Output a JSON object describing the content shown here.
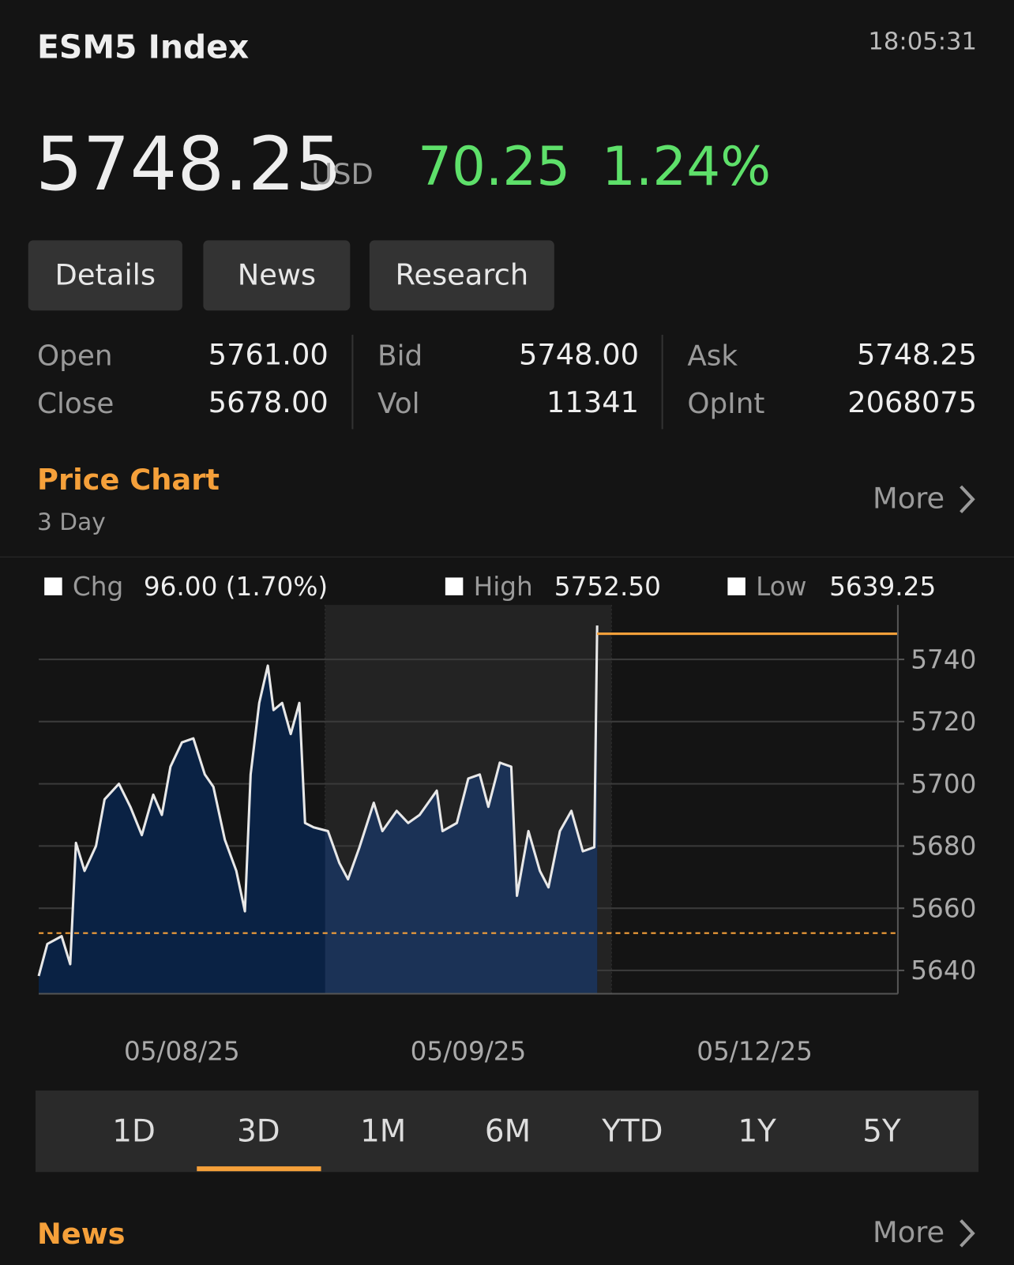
{
  "header": {
    "title": "ESM5 Index",
    "time": "18:05:31",
    "price": "5748.25",
    "currency": "USD",
    "change": "70.25",
    "change_pct": "1.24%"
  },
  "tabs": [
    "Details",
    "News",
    "Research"
  ],
  "stats": [
    {
      "label": "Open",
      "value": "5761.00"
    },
    {
      "label": "Close",
      "value": "5678.00"
    },
    {
      "label": "Bid",
      "value": "5748.00"
    },
    {
      "label": "Vol",
      "value": "11341"
    },
    {
      "label": "Ask",
      "value": "5748.25"
    },
    {
      "label": "OpInt",
      "value": "2068075"
    }
  ],
  "price_chart": {
    "title": "Price Chart",
    "subtitle": "3 Day",
    "more": "More"
  },
  "chart_data": {
    "type": "line",
    "legend": [
      {
        "label": "Chg",
        "value": "96.00 (1.70%)"
      },
      {
        "label": "High",
        "value": "5752.50"
      },
      {
        "label": "Low",
        "value": "5639.25"
      }
    ],
    "x": [
      0,
      0.03,
      0.08,
      0.11,
      0.13,
      0.16,
      0.2,
      0.23,
      0.28,
      0.32,
      0.36,
      0.4,
      0.43,
      0.46,
      0.5,
      0.54,
      0.58,
      0.61,
      0.65,
      0.69,
      0.72,
      0.74,
      0.77,
      0.8,
      0.82,
      0.85,
      0.88,
      0.91,
      0.93,
      0.96,
      1.01,
      1.05,
      1.08,
      1.12,
      1.17,
      1.2,
      1.25,
      1.29,
      1.33,
      1.39,
      1.41,
      1.46,
      1.5,
      1.54,
      1.57,
      1.61,
      1.65,
      1.67,
      1.71,
      1.75,
      1.78,
      1.82,
      1.86,
      1.9,
      1.94,
      1.95
    ],
    "values": [
      5638.2,
      5648.5,
      5651,
      5642,
      5681,
      5672,
      5680,
      5695,
      5700,
      5692.6,
      5683.5,
      5696.5,
      5690,
      5705.5,
      5713.3,
      5714.6,
      5703,
      5699,
      5682,
      5672,
      5659,
      5703,
      5726,
      5738,
      5723.7,
      5726,
      5716,
      5726,
      5687.4,
      5686,
      5684.8,
      5674.5,
      5669.3,
      5679.6,
      5693.9,
      5684.8,
      5691.3,
      5687.4,
      5690,
      5697.8,
      5684.8,
      5687.4,
      5701.7,
      5703,
      5692.6,
      5706.8,
      5705.5,
      5664,
      5684.8,
      5672,
      5666.7,
      5684.8,
      5691.3,
      5678.3,
      5679.6,
      5750.9
    ],
    "color": "#e8e8e8",
    "fill": "#0a2244",
    "fill_alt": "#1b3256",
    "last_price": 5748.25,
    "last_price_color": "#f5a03a",
    "reference_line": 5652,
    "reference_color": "#f5a03a",
    "xlim": [
      0,
      3
    ],
    "xticks": [
      {
        "value": 0.5,
        "label": "05/08/25"
      },
      {
        "value": 1.5,
        "label": "05/09/25"
      },
      {
        "value": 2.5,
        "label": "05/12/25"
      }
    ],
    "ylim": [
      5632.5,
      5757.5
    ],
    "yticks": [
      5640,
      5660,
      5680,
      5700,
      5720,
      5740
    ],
    "grid": true
  },
  "ranges": {
    "items": [
      "1D",
      "3D",
      "1M",
      "6M",
      "YTD",
      "1Y",
      "5Y"
    ],
    "selected_index": 1
  },
  "news": {
    "title": "News",
    "more": "More"
  }
}
